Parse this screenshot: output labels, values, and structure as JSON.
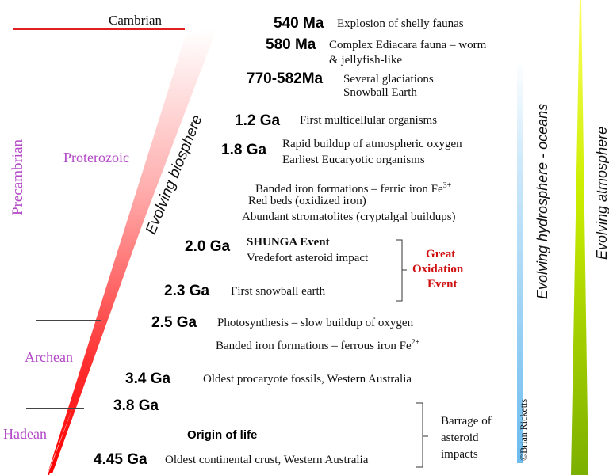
{
  "eras": {
    "cambrian": "Cambrian",
    "precambrian": "Precambrian",
    "proterozoic": "Proterozoic",
    "archean": "Archean",
    "hadean": "Hadean"
  },
  "biosphere_label": "Evolving biosphere",
  "hydrosphere_label": "Evolving hydrosphere - oceans",
  "atmosphere_label": "Evolving atmosphere",
  "credit": "©Brian Ricketts",
  "events": [
    {
      "age": "540 Ma",
      "lines": [
        "Explosion of shelly faunas"
      ]
    },
    {
      "age": "580 Ma",
      "lines": [
        "Complex Ediacara fauna – worm",
        "& jellyfish-like"
      ]
    },
    {
      "age": "770-582Ma",
      "lines": [
        "Several glaciations",
        "Snowball Earth"
      ]
    },
    {
      "age": "1.2 Ga",
      "lines": [
        "First multicellular organisms"
      ]
    },
    {
      "age": "1.8 Ga",
      "lines": [
        "Rapid buildup of atmospheric oxygen",
        "Earliest Eucaryotic organisms"
      ]
    },
    {
      "age": "",
      "lines": [
        "Banded iron formations – ferric iron Fe",
        "Red beds (oxidized iron)",
        "Abundant stromatolites (cryptalgal buildups)"
      ]
    },
    {
      "age": "2.0 Ga",
      "lines": [
        "SHUNGA Event",
        "Vredefort asteroid impact"
      ]
    },
    {
      "age": "2.3 Ga",
      "lines": [
        "First snowball earth"
      ]
    },
    {
      "age": "2.5 Ga",
      "lines": [
        "Photosynthesis – slow buildup of oxygen",
        "Banded iron formations – ferrous iron Fe"
      ]
    },
    {
      "age": "3.4 Ga",
      "lines": [
        "Oldest procaryote fossils, Western Australia"
      ]
    },
    {
      "age": "3.8 Ga",
      "lines": []
    },
    {
      "age": "",
      "lines": [
        "Origin of life"
      ]
    },
    {
      "age": "4.45 Ga",
      "lines": [
        "Oldest continental crust, Western Australia"
      ]
    }
  ],
  "ferric_superscript": "3+",
  "ferrous_superscript": "2+",
  "great_oxidation": [
    "Great",
    "Oxidation",
    "Event"
  ],
  "asteroid_barrage": [
    "Barrage of",
    "asteroid",
    "impacts"
  ],
  "colors": {
    "eon_purple": "#b347c7",
    "great_oxidation_red": "#d01010",
    "wedge_red": "#ff0000",
    "hydrosphere_blue": "#7fc4f0",
    "atmosphere_green": "#8fbf00",
    "cambrian_line": "#e02020"
  }
}
